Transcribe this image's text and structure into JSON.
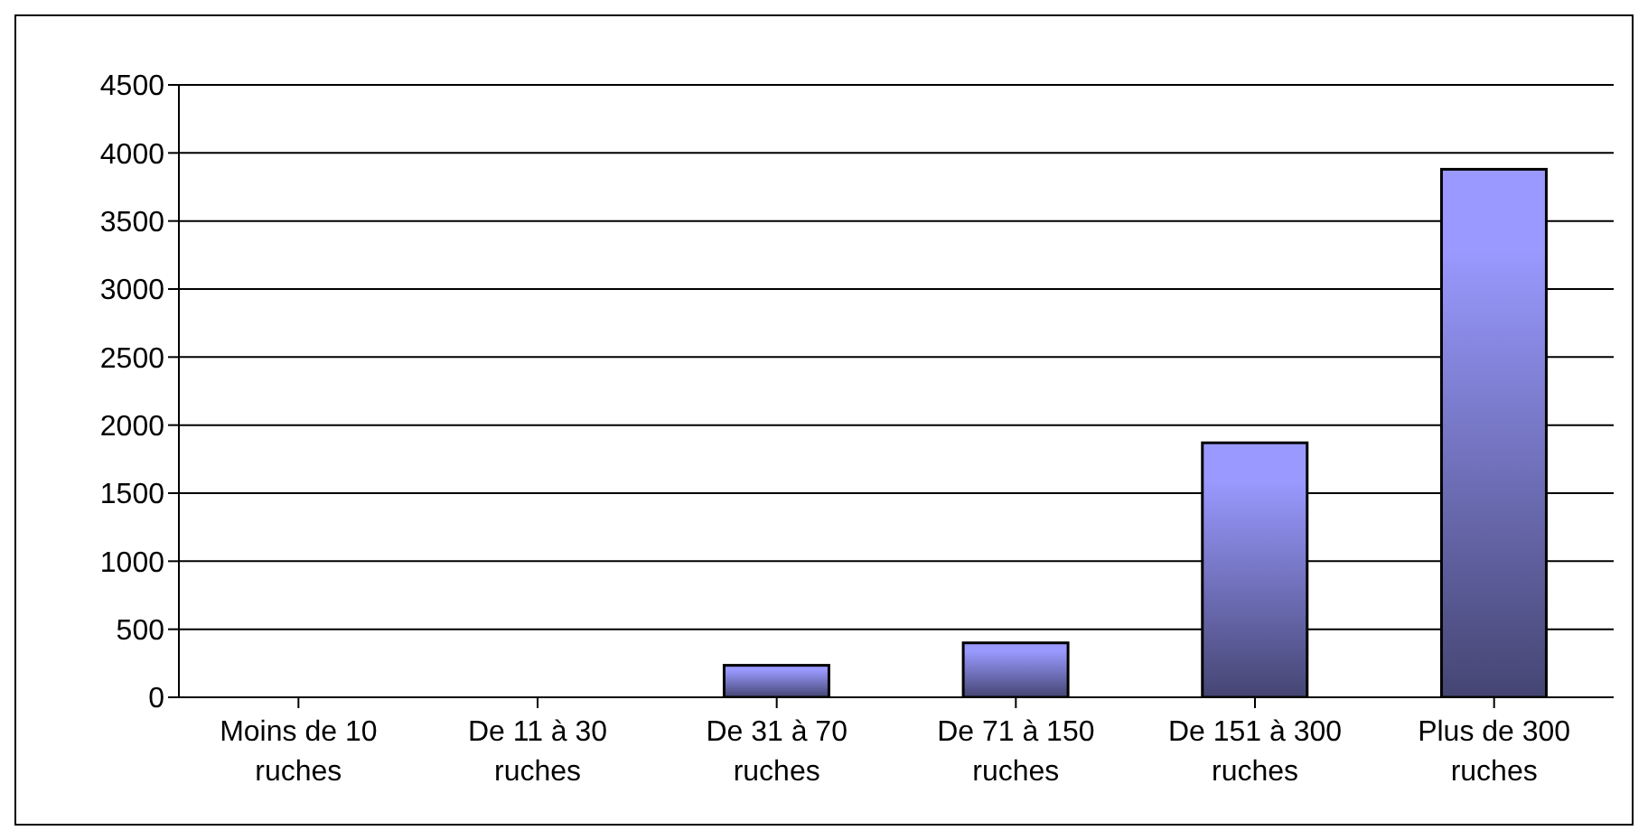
{
  "chart_data": {
    "type": "bar",
    "categories": [
      "Moins de 10 ruches",
      "De 11 à 30 ruches",
      "De 31 à 70 ruches",
      "De 71 à 150 ruches",
      "De 151 à 300 ruches",
      "Plus de 300 ruches"
    ],
    "values": [
      0,
      0,
      235,
      400,
      1870,
      3880
    ],
    "color": "#9999ff",
    "ylim": [
      0,
      4500
    ],
    "yticks": [
      0,
      500,
      1000,
      1500,
      2000,
      2500,
      3000,
      3500,
      4000,
      4500
    ],
    "grid": "y"
  }
}
